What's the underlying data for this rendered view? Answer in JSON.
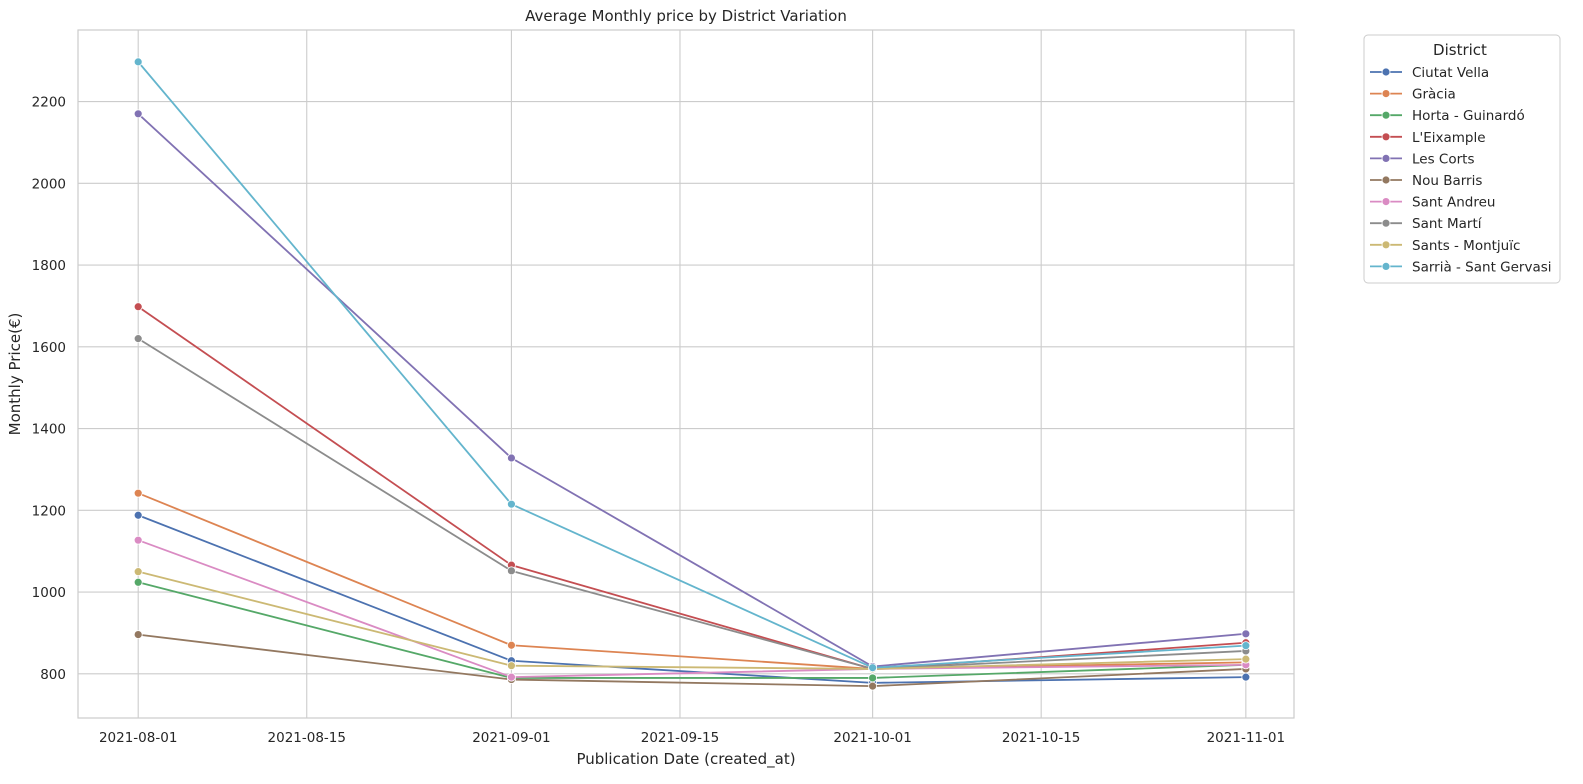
{
  "chart_data": {
    "type": "line",
    "title": "Average Monthly price by District Variation",
    "xlabel": "Publication Date (created_at)",
    "ylabel": "Monthly Price(€)",
    "x": [
      "2021-08-01",
      "2021-09-01",
      "2021-10-01",
      "2021-11-01"
    ],
    "x_ticks": [
      "2021-08-01",
      "2021-08-15",
      "2021-09-01",
      "2021-09-15",
      "2021-10-01",
      "2021-10-15",
      "2021-11-01"
    ],
    "y_ticks": [
      800,
      1000,
      1200,
      1400,
      1600,
      1800,
      2000,
      2200
    ],
    "xlim": [
      "2021-07-27",
      "2021-11-05"
    ],
    "ylim": [
      692,
      2375
    ],
    "grid": true,
    "legend": {
      "title": "District",
      "placement": "outside-right-top"
    },
    "series": [
      {
        "name": "Ciutat Vella",
        "color": "#4c72b0",
        "values": [
          1188,
          832,
          778,
          792
        ]
      },
      {
        "name": "Gràcia",
        "color": "#dd8452",
        "values": [
          1242,
          870,
          812,
          828
        ]
      },
      {
        "name": "Horta - Guinardó",
        "color": "#55a868",
        "values": [
          1024,
          790,
          790,
          822
        ]
      },
      {
        "name": "L'Eixample",
        "color": "#c44e52",
        "values": [
          1698,
          1066,
          812,
          876
        ]
      },
      {
        "name": "Les Corts",
        "color": "#8172b3",
        "values": [
          2170,
          1328,
          818,
          898
        ]
      },
      {
        "name": "Nou Barris",
        "color": "#937860",
        "values": [
          896,
          786,
          770,
          812
        ]
      },
      {
        "name": "Sant Andreu",
        "color": "#da8bc3",
        "values": [
          1127,
          792,
          812,
          822
        ]
      },
      {
        "name": "Sant Martí",
        "color": "#8c8c8c",
        "values": [
          1620,
          1052,
          812,
          856
        ]
      },
      {
        "name": "Sants - Montjuïc",
        "color": "#ccb974",
        "values": [
          1050,
          820,
          812,
          836
        ]
      },
      {
        "name": "Sarrià - Sant Gervasi",
        "color": "#64b5cd",
        "values": [
          2297,
          1215,
          815,
          869
        ]
      }
    ]
  }
}
